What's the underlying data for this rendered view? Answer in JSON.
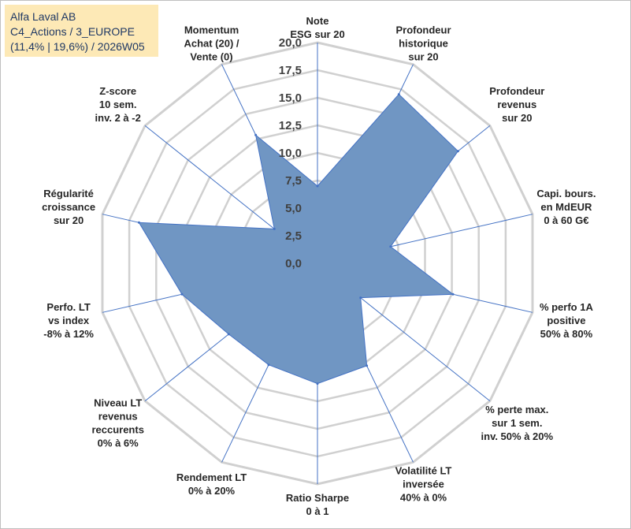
{
  "header": {
    "line1": "Alfa Laval AB",
    "line2": "C4_Actions / 3_EUROPE",
    "line3": "(11,4% | 19,6%) / 2026W05"
  },
  "colors": {
    "fill": "#7096c3",
    "line": "#4472c4",
    "grid": "#d0d0d0",
    "spoke": "#4472c4",
    "title_bg": "#fde9b6",
    "title_text": "#1f3864"
  },
  "chart_data": {
    "type": "radar",
    "rmin": 0,
    "rmax": 20,
    "step": 2.5,
    "tick_labels": [
      "0,0",
      "2,5",
      "5,0",
      "7,5",
      "10,0",
      "12,5",
      "15,0",
      "17,5",
      "20,0"
    ],
    "axes": [
      {
        "label": [
          "Note",
          "ESG sur 20"
        ],
        "value": 7.0,
        "anchor": "middle"
      },
      {
        "label": [
          "Profondeur",
          "historique",
          "sur 20"
        ],
        "value": 17.0,
        "anchor": "middle"
      },
      {
        "label": [
          "Profondeur",
          "revenus",
          "sur 20"
        ],
        "value": 16.3,
        "anchor": "middle"
      },
      {
        "label": [
          "Capi. bours.",
          "en MdEUR",
          "0 à 60 G€"
        ],
        "value": 6.8,
        "anchor": "middle"
      },
      {
        "label": [
          "% perfo 1A",
          "positive",
          "50% à 80%"
        ],
        "value": 12.6,
        "anchor": "middle"
      },
      {
        "label": [
          "% perte max.",
          "sur 1 sem.",
          "inv. 50% à 20%"
        ],
        "value": 5.0,
        "anchor": "middle"
      },
      {
        "label": [
          "Volatilité LT",
          "inversée",
          "40% à 0%"
        ],
        "value": 10.3,
        "anchor": "middle"
      },
      {
        "label": [
          "Ratio Sharpe",
          "0 à 1"
        ],
        "value": 10.9,
        "anchor": "middle"
      },
      {
        "label": [
          "Rendement LT",
          "0% à 20%"
        ],
        "value": 10.2,
        "anchor": "middle"
      },
      {
        "label": [
          "Niveau LT",
          "revenus",
          "reccurents",
          "0% à 6%"
        ],
        "value": 10.3,
        "anchor": "middle"
      },
      {
        "label": [
          "Perfo. LT",
          "vs index",
          "-8% à 12%"
        ],
        "value": 12.6,
        "anchor": "middle"
      },
      {
        "label": [
          "Régularité",
          "croissance",
          "sur 20"
        ],
        "value": 16.6,
        "anchor": "middle"
      },
      {
        "label": [
          "Z-score",
          "10 sem.",
          "inv. 2 à -2"
        ],
        "value": 5.0,
        "anchor": "middle"
      },
      {
        "label": [
          "Momentum",
          "Achat (20) /",
          "Vente (0)"
        ],
        "value": 12.9,
        "anchor": "middle"
      }
    ]
  }
}
